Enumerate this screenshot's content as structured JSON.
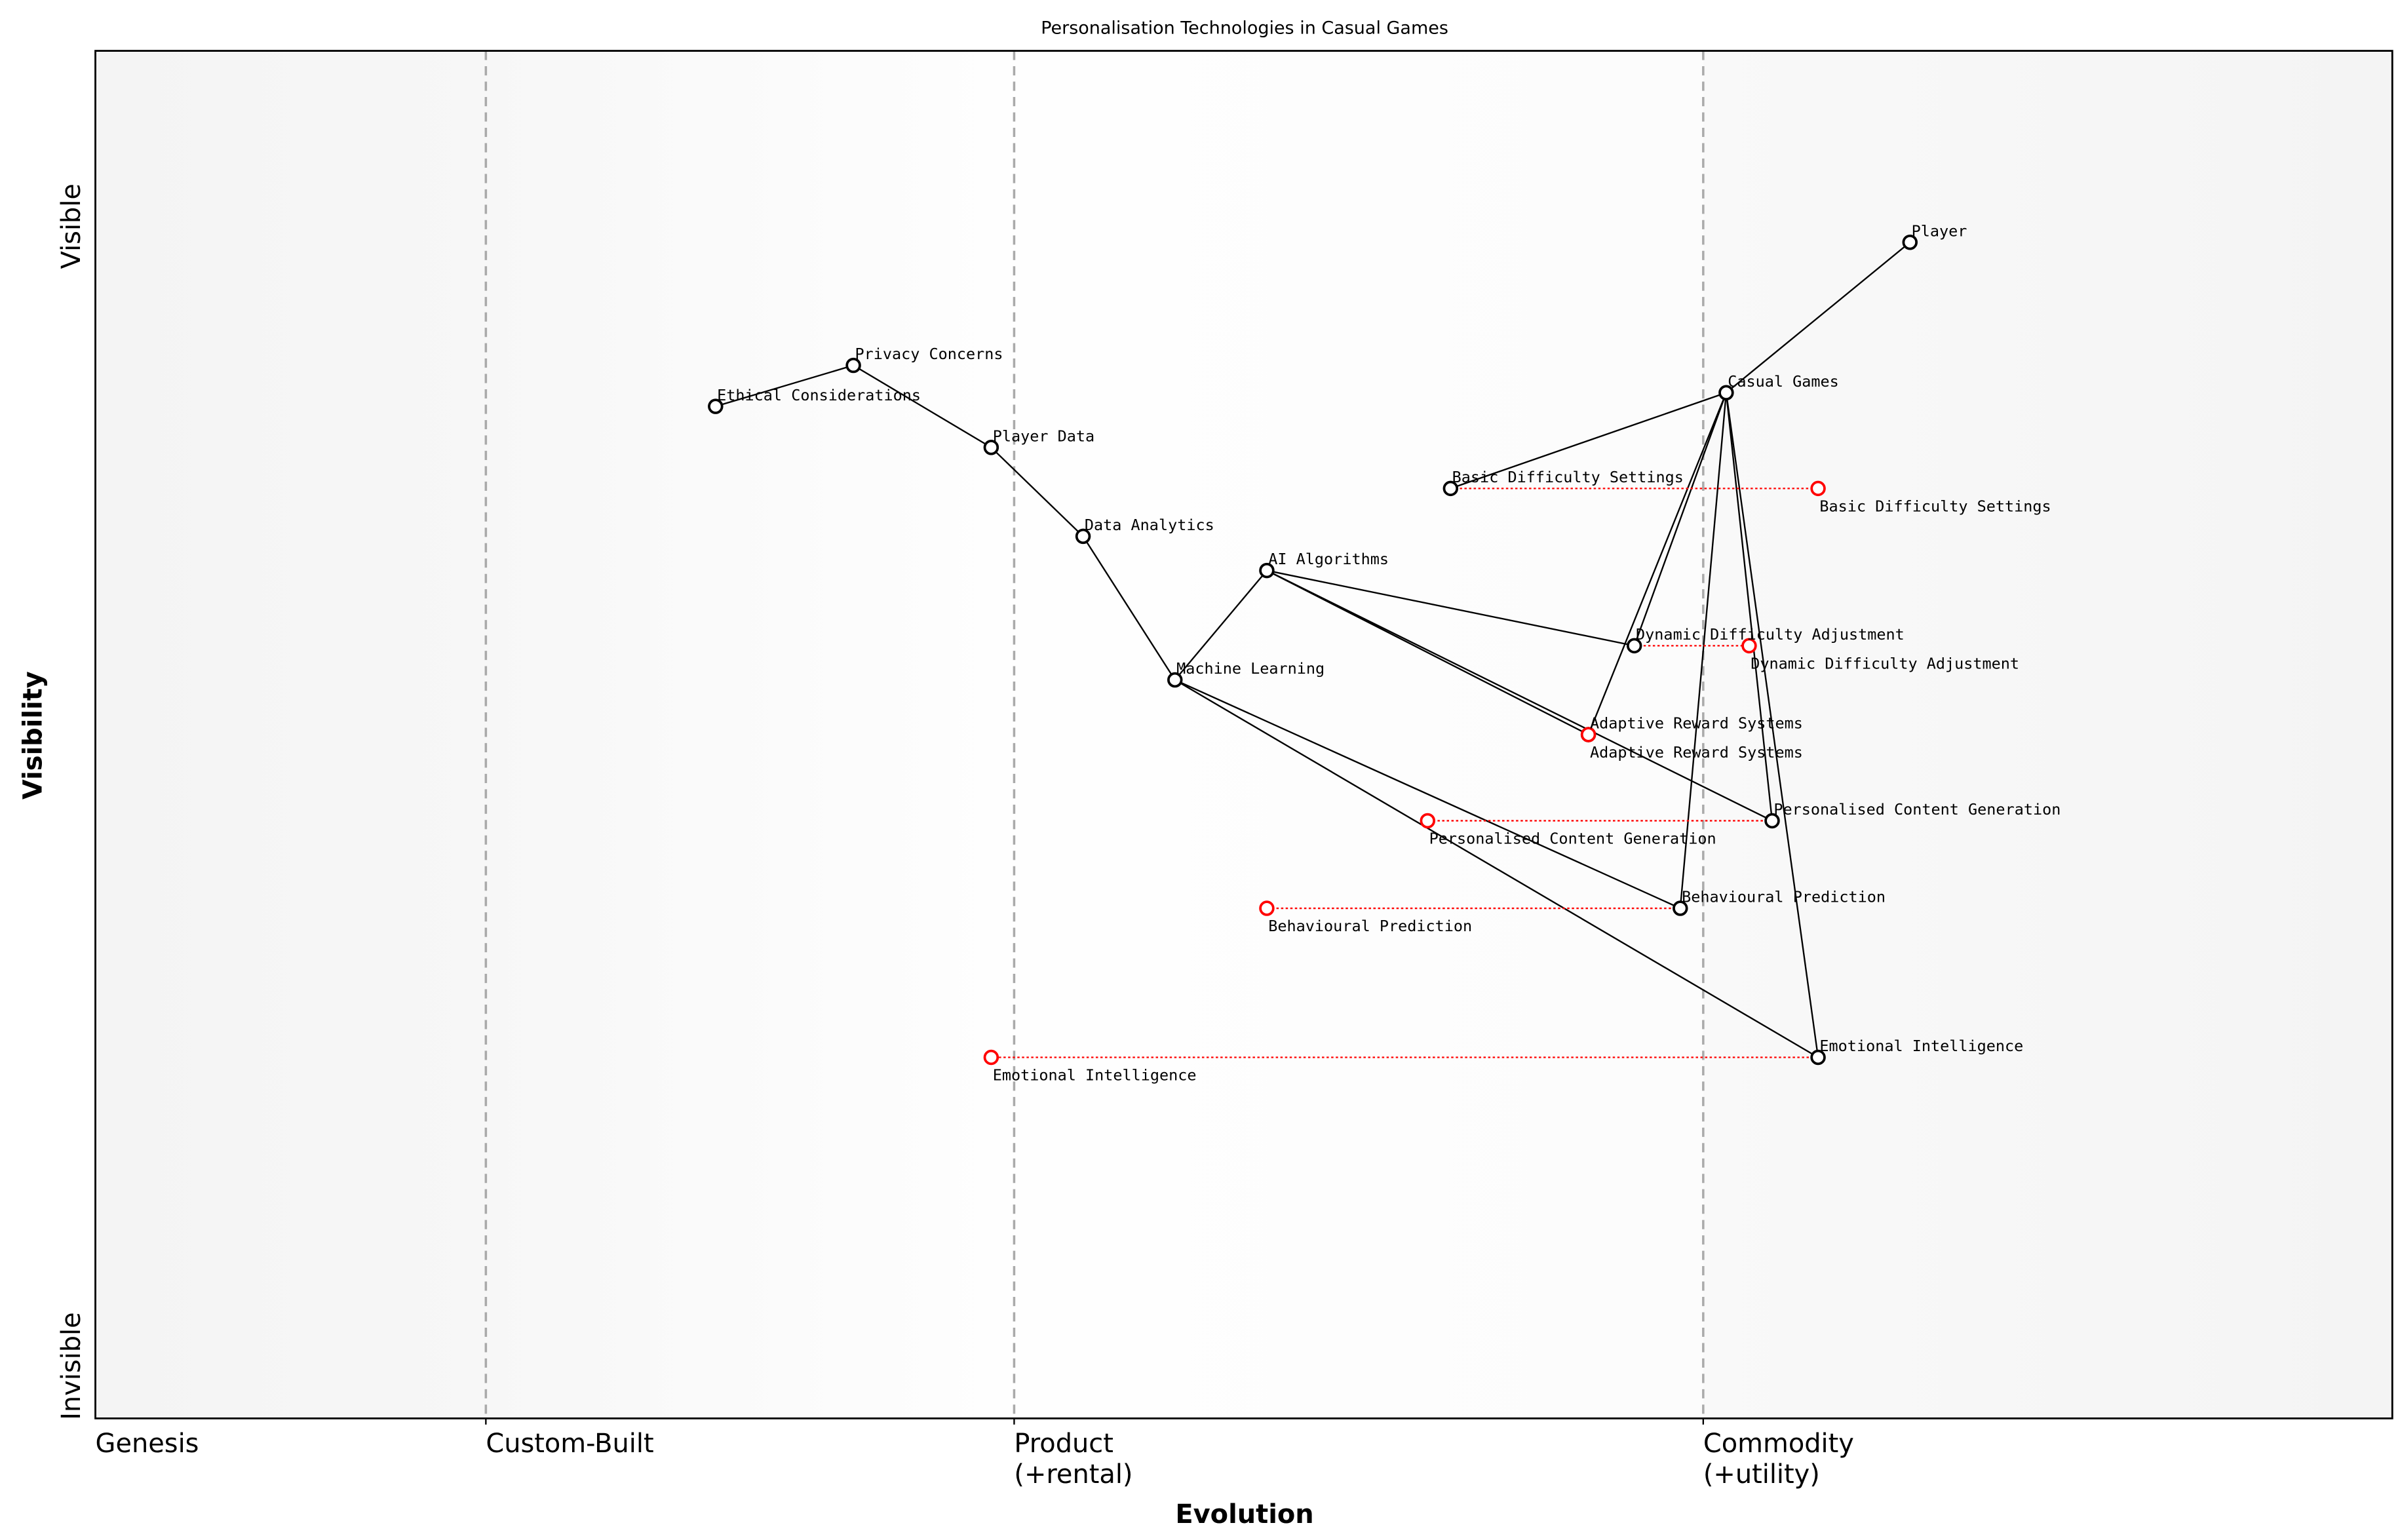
{
  "title": "Personalisation Technologies in Casual Games",
  "axes": {
    "xlabel": "Evolution",
    "ylabel": "Visibility",
    "y_top_label": "Visible",
    "y_bottom_label": "Invisible",
    "stages": [
      {
        "label": "Genesis",
        "line2": "",
        "at": 0.0
      },
      {
        "label": "Custom-Built",
        "line2": "",
        "at": 0.17
      },
      {
        "label": "Product",
        "line2": "(+rental)",
        "at": 0.4
      },
      {
        "label": "Commodity",
        "line2": "(+utility)",
        "at": 0.7
      }
    ]
  },
  "colors": {
    "node": "#000000",
    "evolve": "#ff0000",
    "stage_line": "#aaaaaa",
    "band": "#f5f5f5"
  },
  "components": [
    {
      "name": "Player",
      "evolution": 0.79,
      "visibility": 0.86
    },
    {
      "name": "Casual Games",
      "evolution": 0.71,
      "visibility": 0.75
    },
    {
      "name": "Basic Difficulty Settings",
      "evolution": 0.59,
      "visibility": 0.68
    },
    {
      "name": "Privacy Concerns",
      "evolution": 0.33,
      "visibility": 0.77
    },
    {
      "name": "Ethical Considerations",
      "evolution": 0.27,
      "visibility": 0.74
    },
    {
      "name": "Player Data",
      "evolution": 0.39,
      "visibility": 0.71
    },
    {
      "name": "Data Analytics",
      "evolution": 0.43,
      "visibility": 0.645
    },
    {
      "name": "AI Algorithms",
      "evolution": 0.51,
      "visibility": 0.62
    },
    {
      "name": "Machine Learning",
      "evolution": 0.47,
      "visibility": 0.54
    },
    {
      "name": "Dynamic Difficulty Adjustment",
      "evolution": 0.67,
      "visibility": 0.565
    },
    {
      "name": "Adaptive Reward Systems",
      "evolution": 0.65,
      "visibility": 0.5
    },
    {
      "name": "Personalised Content Generation",
      "evolution": 0.73,
      "visibility": 0.437
    },
    {
      "name": "Behavioural Prediction",
      "evolution": 0.69,
      "visibility": 0.373
    },
    {
      "name": "Emotional Intelligence",
      "evolution": 0.75,
      "visibility": 0.264
    }
  ],
  "links": [
    [
      "Player",
      "Casual Games"
    ],
    [
      "Casual Games",
      "Basic Difficulty Settings"
    ],
    [
      "Casual Games",
      "Dynamic Difficulty Adjustment"
    ],
    [
      "Casual Games",
      "Adaptive Reward Systems"
    ],
    [
      "Casual Games",
      "Personalised Content Generation"
    ],
    [
      "Casual Games",
      "Behavioural Prediction"
    ],
    [
      "Casual Games",
      "Emotional Intelligence"
    ],
    [
      "Ethical Considerations",
      "Privacy Concerns"
    ],
    [
      "Privacy Concerns",
      "Player Data"
    ],
    [
      "Player Data",
      "Data Analytics"
    ],
    [
      "Data Analytics",
      "Machine Learning"
    ],
    [
      "Machine Learning",
      "AI Algorithms"
    ],
    [
      "AI Algorithms",
      "Dynamic Difficulty Adjustment"
    ],
    [
      "AI Algorithms",
      "Adaptive Reward Systems"
    ],
    [
      "AI Algorithms",
      "Personalised Content Generation"
    ],
    [
      "Machine Learning",
      "Behavioural Prediction"
    ],
    [
      "Machine Learning",
      "Emotional Intelligence"
    ]
  ],
  "evolutions": [
    {
      "name": "Basic Difficulty Settings",
      "to": 0.75
    },
    {
      "name": "Dynamic Difficulty Adjustment",
      "to": 0.72
    },
    {
      "name": "Adaptive Reward Systems",
      "to": 0.65
    },
    {
      "name": "Personalised Content Generation",
      "to": 0.58
    },
    {
      "name": "Behavioural Prediction",
      "to": 0.51
    },
    {
      "name": "Emotional Intelligence",
      "to": 0.39
    }
  ]
}
